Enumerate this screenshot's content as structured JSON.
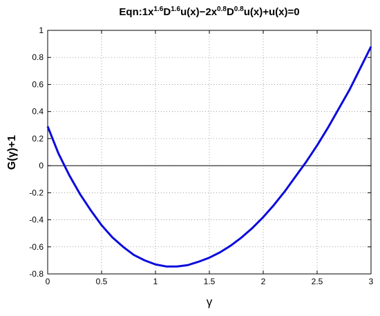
{
  "chart_data": {
    "type": "line",
    "title_parts": [
      {
        "text": "Eqn:1x"
      },
      {
        "text": "1.6",
        "sup": true
      },
      {
        "text": "D"
      },
      {
        "text": "1.6",
        "sup": true
      },
      {
        "text": "u(x)−2x"
      },
      {
        "text": "0.8",
        "sup": true
      },
      {
        "text": "D"
      },
      {
        "text": "0.8",
        "sup": true
      },
      {
        "text": "u(x)+u(x)=0"
      }
    ],
    "xlabel": "γ",
    "ylabel": "G(γ)+1",
    "x": [
      0,
      0.1,
      0.2,
      0.3,
      0.4,
      0.5,
      0.6,
      0.7,
      0.8,
      0.9,
      1.0,
      1.1,
      1.2,
      1.3,
      1.4,
      1.5,
      1.6,
      1.7,
      1.8,
      1.9,
      2.0,
      2.1,
      2.2,
      2.3,
      2.4,
      2.5,
      2.6,
      2.7,
      2.8,
      2.9,
      3.0
    ],
    "values": [
      0.29,
      0.09,
      -0.07,
      -0.21,
      -0.33,
      -0.44,
      -0.53,
      -0.6,
      -0.66,
      -0.7,
      -0.73,
      -0.745,
      -0.745,
      -0.735,
      -0.71,
      -0.68,
      -0.64,
      -0.59,
      -0.53,
      -0.46,
      -0.38,
      -0.29,
      -0.19,
      -0.08,
      0.03,
      0.15,
      0.28,
      0.42,
      0.56,
      0.72,
      0.88
    ],
    "color": "#0a0adc",
    "reference_line": 0,
    "xlim": [
      0,
      3
    ],
    "xticks": [
      0,
      0.5,
      1,
      1.5,
      2,
      2.5,
      3
    ],
    "ylim": [
      -0.8,
      1
    ],
    "yticks": [
      -0.8,
      -0.6,
      -0.4,
      -0.2,
      0,
      0.2,
      0.4,
      0.6,
      0.8,
      1
    ],
    "grid": true
  }
}
